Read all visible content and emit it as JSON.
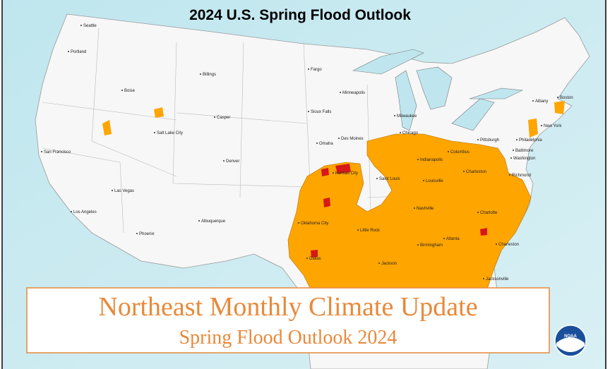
{
  "title": "2024 U.S. Spring Flood Outlook",
  "cities": [
    "Seattle",
    "Portland",
    "Billings",
    "Boise",
    "Casper",
    "Salt Lake City",
    "San Francisco",
    "Denver",
    "Las Vegas",
    "Los Angeles",
    "Phoenix",
    "Albuquerque",
    "Fargo",
    "Minneapolis",
    "Sioux Falls",
    "Omaha",
    "Des Moines",
    "Kansas City",
    "Oklahoma City",
    "Dallas",
    "Little Rock",
    "Saint Louis",
    "Milwaukee",
    "Chicago",
    "Indianapolis",
    "Columbus",
    "Louisville",
    "Nashville",
    "Charleston",
    "Pittsburgh",
    "Albany",
    "Boston",
    "New York",
    "Philadelphia",
    "Baltimore",
    "Washington",
    "Richmond",
    "Charlotte",
    "Birmingham",
    "Atlanta",
    "Jackson",
    "Charleston",
    "Jacksonville"
  ],
  "banner": {
    "title": "Northeast Monthly Climate Update",
    "subtitle": "Spring Flood Outlook 2024"
  },
  "logo": "NOAA"
}
